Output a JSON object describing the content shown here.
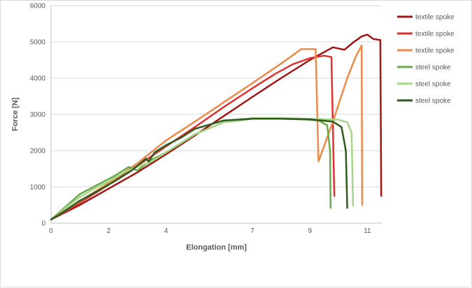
{
  "chart_data": {
    "type": "line",
    "title": "",
    "xlabel": "Elongation [mm]",
    "ylabel": "Force [N]",
    "xlim": [
      0,
      11.5
    ],
    "ylim": [
      0,
      6000
    ],
    "x_ticks": [
      {
        "value": 0,
        "label": "0"
      },
      {
        "value": 2,
        "label": "2"
      },
      {
        "value": 4,
        "label": "4"
      },
      {
        "value": 7,
        "label": "7"
      },
      {
        "value": 9,
        "label": "9"
      },
      {
        "value": 11,
        "label": "11"
      }
    ],
    "y_ticks": [
      0,
      1000,
      2000,
      3000,
      4000,
      5000,
      6000
    ],
    "grid": "horizontal",
    "legend_position": "right",
    "series": [
      {
        "name": "textile spoke",
        "color": "#a31515",
        "x": [
          0,
          1,
          2,
          3,
          4,
          5,
          6,
          7,
          8,
          9,
          9.8,
          10.2,
          10.5,
          10.8,
          11.0,
          11.2,
          11.45,
          11.48
        ],
        "y": [
          100,
          500,
          950,
          1400,
          1900,
          2420,
          2950,
          3480,
          4000,
          4500,
          4850,
          4780,
          4980,
          5150,
          5200,
          5080,
          5050,
          750
        ]
      },
      {
        "name": "textile spoke",
        "color": "#e03030",
        "x": [
          0,
          1,
          2,
          3,
          4,
          5,
          6,
          7,
          7.8,
          8.4,
          9.0,
          9.5,
          9.75,
          9.85
        ],
        "y": [
          100,
          560,
          1060,
          1580,
          2120,
          2650,
          3200,
          3720,
          4120,
          4380,
          4550,
          4620,
          4580,
          750
        ]
      },
      {
        "name": "textile spoke",
        "color": "#ed8a4a",
        "x": [
          0,
          1,
          2,
          3,
          4,
          5,
          6,
          7,
          8,
          8.7,
          9.2,
          9.3,
          9.8,
          10.3,
          10.6,
          10.8,
          10.82
        ],
        "y": [
          100,
          600,
          1100,
          1650,
          2280,
          2800,
          3330,
          3860,
          4400,
          4800,
          4800,
          1700,
          2800,
          4000,
          4600,
          4900,
          500
        ]
      },
      {
        "name": "steel spoke",
        "color": "#6aaa4a",
        "x": [
          0,
          0.5,
          1.0,
          1.6,
          2.2,
          2.7,
          3.0,
          3.5,
          4,
          5,
          6,
          7,
          8,
          8.8,
          9.3,
          9.6,
          9.7,
          9.72
        ],
        "y": [
          100,
          450,
          800,
          1050,
          1300,
          1550,
          1450,
          1750,
          1950,
          2450,
          2780,
          2880,
          2880,
          2860,
          2830,
          2700,
          2000,
          420
        ]
      },
      {
        "name": "steel spoke",
        "color": "#a6d585",
        "x": [
          0,
          0.5,
          1.0,
          1.5,
          2.0,
          2.5,
          3.0,
          3.5,
          4,
          5,
          6,
          7,
          8,
          9,
          10,
          10.3,
          10.45,
          10.5
        ],
        "y": [
          100,
          420,
          720,
          950,
          1150,
          1380,
          1550,
          1700,
          1950,
          2450,
          2780,
          2900,
          2900,
          2880,
          2850,
          2780,
          2500,
          480
        ]
      },
      {
        "name": "steel spoke",
        "color": "#2e5a1e",
        "x": [
          0,
          0.5,
          1.0,
          1.6,
          2.2,
          2.8,
          3.3,
          3.4,
          3.6,
          4.0,
          4.5,
          5,
          6,
          7,
          8,
          9,
          9.8,
          10.1,
          10.25,
          10.3
        ],
        "y": [
          100,
          350,
          620,
          880,
          1150,
          1450,
          1780,
          1700,
          1950,
          2150,
          2350,
          2600,
          2830,
          2880,
          2880,
          2860,
          2800,
          2650,
          2000,
          420
        ]
      }
    ]
  }
}
